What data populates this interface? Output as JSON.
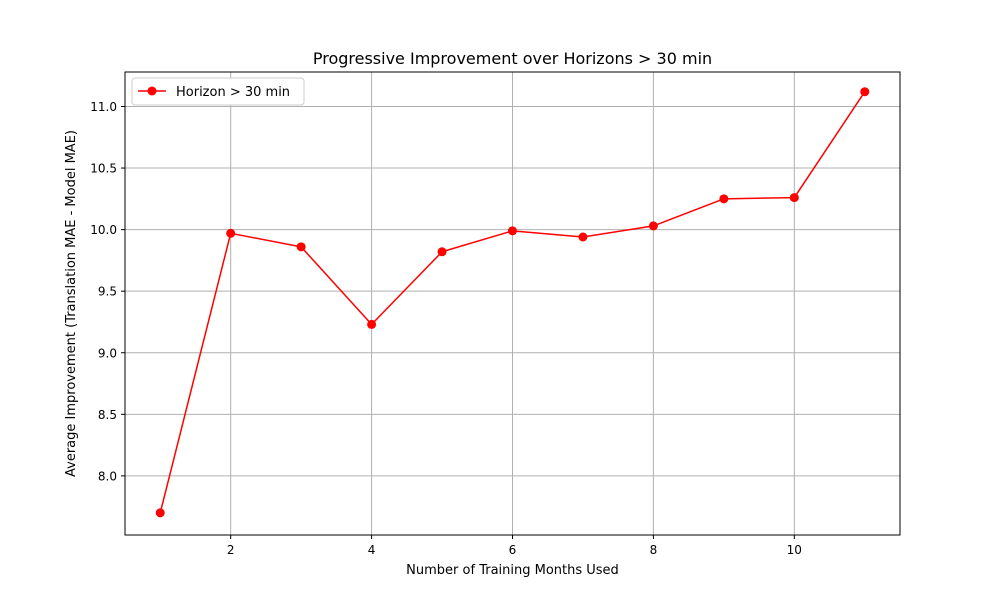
{
  "chart_data": {
    "type": "line",
    "title": "Progressive Improvement over Horizons > 30 min",
    "xlabel": "Number of Training Months Used",
    "ylabel": "Average Improvement (Translation MAE - Model MAE)",
    "xlim": [
      0.5,
      11.5
    ],
    "ylim": [
      7.52,
      11.28
    ],
    "xticks": [
      2,
      4,
      6,
      8,
      10
    ],
    "xtick_labels": [
      "2",
      "4",
      "6",
      "8",
      "10"
    ],
    "yticks": [
      8.0,
      8.5,
      9.0,
      9.5,
      10.0,
      10.5,
      11.0
    ],
    "ytick_labels": [
      "8.0",
      "8.5",
      "9.0",
      "9.5",
      "10.0",
      "10.5",
      "11.0"
    ],
    "grid": true,
    "legend_position": "top-left",
    "series": [
      {
        "name": "Horizon > 30 min",
        "color": "#ff0000",
        "marker": "circle",
        "x": [
          1,
          2,
          3,
          4,
          5,
          6,
          7,
          8,
          9,
          10,
          11
        ],
        "y": [
          7.7,
          9.97,
          9.86,
          9.23,
          9.82,
          9.99,
          9.94,
          10.03,
          10.25,
          10.26,
          11.12
        ]
      }
    ]
  }
}
